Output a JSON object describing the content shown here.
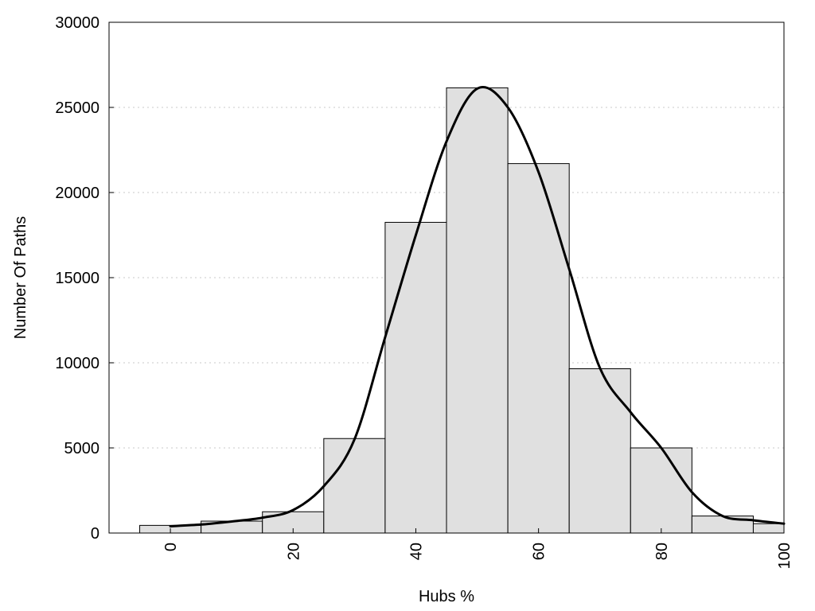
{
  "chart_data": {
    "type": "bar",
    "title": "",
    "xlabel": "Hubs %",
    "ylabel": "Number Of Paths",
    "xlim": [
      -10,
      100
    ],
    "ylim": [
      0,
      30000
    ],
    "x_ticks": [
      0,
      20,
      40,
      60,
      80,
      100
    ],
    "y_ticks": [
      0,
      5000,
      10000,
      15000,
      20000,
      25000,
      30000
    ],
    "grid": "horizontal dotted",
    "bin_width": 10,
    "bins": [
      {
        "center": 0,
        "count": 450
      },
      {
        "center": 10,
        "count": 700
      },
      {
        "center": 20,
        "count": 1250
      },
      {
        "center": 30,
        "count": 5550
      },
      {
        "center": 40,
        "count": 18250
      },
      {
        "center": 50,
        "count": 26150
      },
      {
        "center": 60,
        "count": 21700
      },
      {
        "center": 70,
        "count": 9650
      },
      {
        "center": 80,
        "count": 5000
      },
      {
        "center": 90,
        "count": 1000
      },
      {
        "center": 100,
        "count": 550
      }
    ],
    "density_curve": [
      [
        0,
        400
      ],
      [
        5,
        500
      ],
      [
        10,
        680
      ],
      [
        15,
        900
      ],
      [
        20,
        1350
      ],
      [
        25,
        2750
      ],
      [
        30,
        5500
      ],
      [
        35,
        11500
      ],
      [
        40,
        17500
      ],
      [
        45,
        23000
      ],
      [
        50,
        26100
      ],
      [
        55,
        25000
      ],
      [
        60,
        21200
      ],
      [
        65,
        15500
      ],
      [
        70,
        9700
      ],
      [
        75,
        7100
      ],
      [
        80,
        5000
      ],
      [
        85,
        2400
      ],
      [
        90,
        1000
      ],
      [
        95,
        750
      ],
      [
        100,
        550
      ]
    ],
    "colors": {
      "bar_fill": "#e0e0e0",
      "bar_stroke": "#000000",
      "curve": "#000000"
    }
  }
}
